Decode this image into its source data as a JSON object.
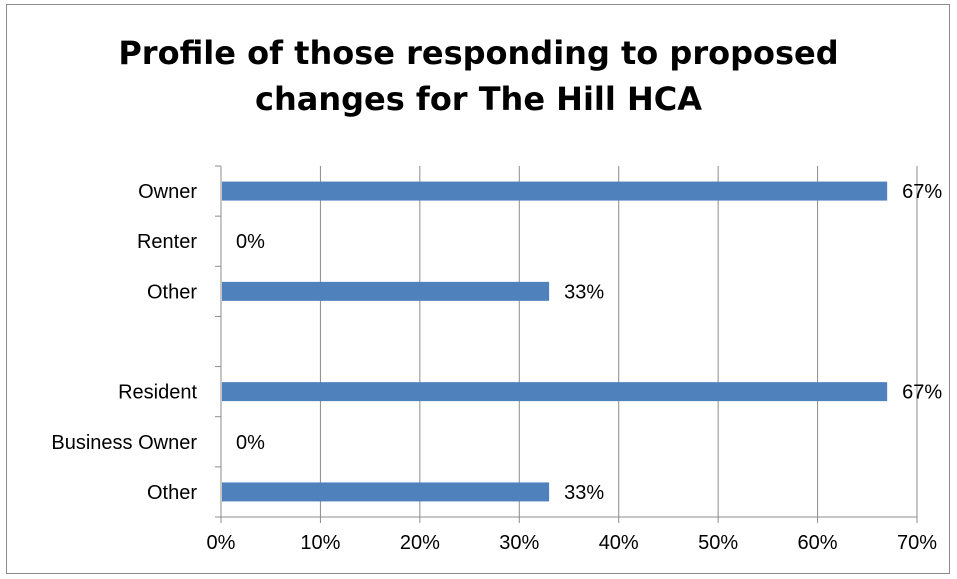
{
  "chart_data": {
    "type": "bar",
    "orientation": "horizontal",
    "title": "Profile of those responding to proposed changes for The Hill HCA",
    "title_lines": [
      "Profile of those responding to proposed",
      "changes for The Hill HCA"
    ],
    "categories": [
      "Owner",
      "Renter",
      "Other",
      "",
      "Resident",
      "Business Owner",
      "Other"
    ],
    "values": [
      67,
      0,
      33,
      null,
      67,
      0,
      33
    ],
    "value_labels": [
      "67%",
      "0%",
      "33%",
      "",
      "67%",
      "0%",
      "33%"
    ],
    "xlim": [
      0,
      70
    ],
    "xticks": [
      "0%",
      "10%",
      "20%",
      "30%",
      "40%",
      "50%",
      "60%",
      "70%"
    ],
    "xgrid": true,
    "legend": "none",
    "bar_color": "#4f81bd"
  }
}
